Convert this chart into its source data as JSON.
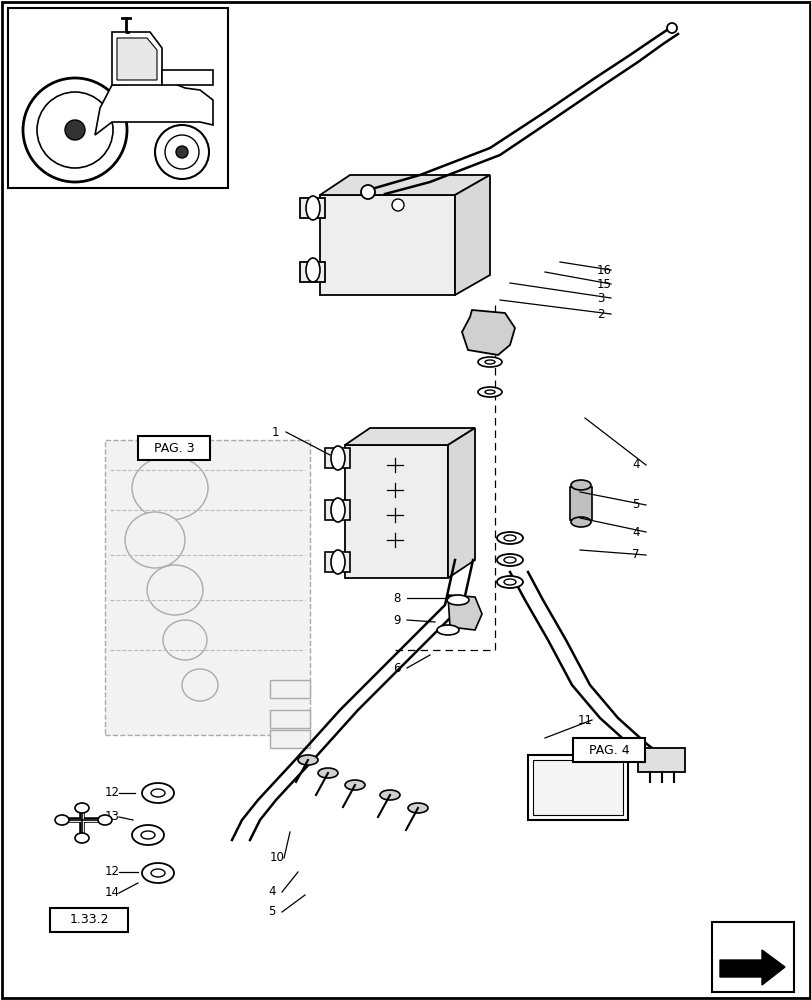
{
  "bg_color": "#ffffff",
  "ref_text": "1.33.2",
  "pag3_text": "PAG. 3",
  "pag4_text": "PAG. 4",
  "line_color": "#000000",
  "dashed_color": "#555555",
  "light_gray": "#cccccc",
  "medium_gray": "#888888"
}
